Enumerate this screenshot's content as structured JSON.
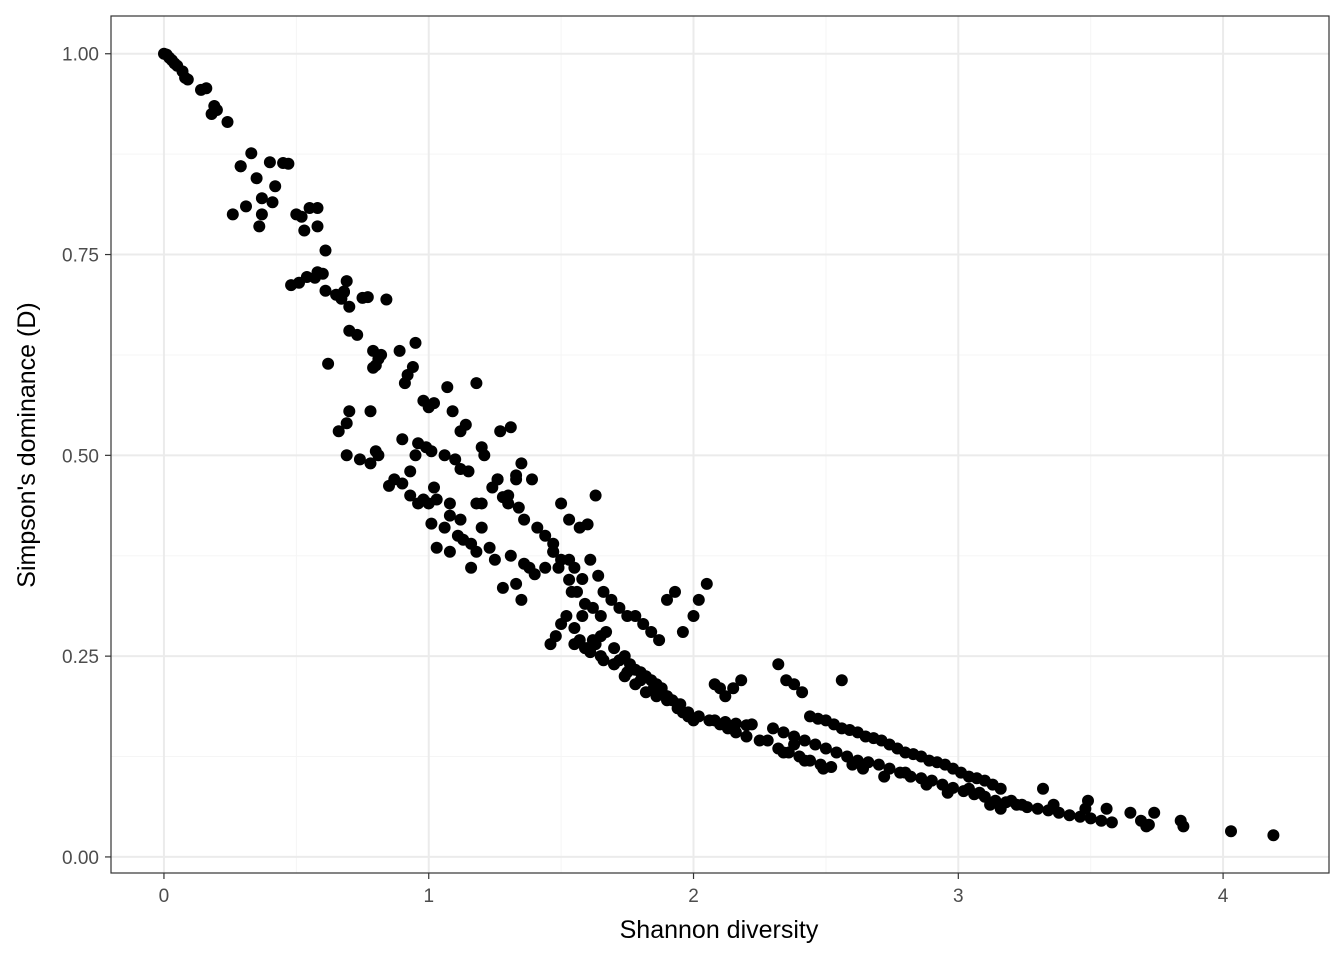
{
  "chart_data": {
    "type": "scatter",
    "title": "",
    "xlabel": "Shannon diversity",
    "ylabel": "Simpson's dominance (D)",
    "xlim": [
      -0.2,
      4.4
    ],
    "ylim": [
      -0.02,
      1.047
    ],
    "x_ticks": [
      0,
      1,
      2,
      3,
      4
    ],
    "x_tick_labels": [
      "0",
      "1",
      "2",
      "3",
      "4"
    ],
    "y_ticks": [
      0,
      0.25,
      0.5,
      0.75,
      1.0
    ],
    "y_tick_labels": [
      "0.00",
      "0.25",
      "0.50",
      "0.75",
      "1.00"
    ],
    "grid": true,
    "theme": "bw",
    "point_color": "#000000",
    "panel_border_color": "#333333",
    "grid_major_color": "#ebebeb",
    "grid_minor_color": "#f5f5f5",
    "series": [
      {
        "x": [
          0.0,
          0.01,
          0.02,
          0.03,
          0.04,
          0.05,
          0.07,
          0.08,
          0.09,
          0.14,
          0.16,
          0.18,
          0.19,
          0.2,
          0.24,
          0.29,
          0.33,
          0.35,
          0.37,
          0.4,
          0.41,
          0.42,
          0.45,
          0.47,
          0.52,
          0.53,
          0.55,
          0.58,
          0.29,
          0.26,
          0.31,
          0.36,
          0.37,
          0.48,
          0.51,
          0.54,
          0.58,
          0.61,
          0.58,
          0.5,
          0.57,
          0.6,
          0.61,
          0.65,
          0.68,
          0.69,
          0.67,
          0.68,
          0.7,
          0.75,
          0.77,
          0.81,
          0.84,
          0.79,
          0.82,
          0.62,
          0.7,
          0.73,
          0.79,
          0.8,
          0.89,
          0.92,
          0.95,
          0.91,
          0.94,
          1.02,
          0.98,
          1.0,
          1.07,
          1.09,
          1.14,
          1.18,
          1.12,
          1.2,
          1.27,
          1.31,
          1.35,
          1.39,
          0.66,
          0.69,
          0.7,
          0.78,
          0.8,
          0.81,
          0.9,
          0.93,
          0.95,
          0.96,
          0.99,
          1.01,
          1.02,
          1.06,
          1.08,
          1.1,
          1.12,
          1.15,
          1.18,
          1.21,
          1.24,
          1.26,
          1.28,
          1.3,
          1.33,
          1.34,
          1.36,
          0.69,
          0.74,
          0.78,
          0.85,
          0.87,
          0.9,
          0.93,
          0.96,
          0.98,
          1.0,
          1.03,
          1.06,
          1.08,
          1.11,
          1.13,
          1.16,
          1.18,
          1.2,
          1.23,
          1.25,
          1.28,
          1.31,
          1.33,
          1.35,
          1.38,
          1.41,
          1.44,
          1.47,
          1.5,
          1.53,
          1.56,
          1.59,
          1.62,
          1.65,
          1.53,
          1.57,
          1.6,
          1.63,
          1.01,
          1.03,
          1.08,
          1.12,
          1.16,
          1.2,
          1.26,
          1.3,
          1.33,
          1.36,
          1.4,
          1.44,
          1.47,
          1.5,
          1.53,
          1.55,
          1.58,
          1.61,
          1.64,
          1.66,
          1.69,
          1.72,
          1.75,
          1.78,
          1.81,
          1.84,
          1.87,
          1.9,
          1.93,
          1.96,
          2.0,
          2.02,
          2.05,
          1.46,
          1.48,
          1.5,
          1.52,
          1.55,
          1.57,
          1.59,
          1.61,
          1.63,
          1.65,
          1.67,
          1.7,
          1.72,
          1.74,
          1.76,
          1.78,
          1.8,
          1.82,
          1.84,
          1.86,
          1.88,
          1.9,
          1.92,
          1.94,
          1.96,
          1.98,
          2.0,
          1.47,
          1.49,
          1.54,
          1.58,
          1.62,
          1.66,
          1.7,
          1.74,
          1.78,
          1.82,
          1.86,
          1.9,
          1.94,
          1.98,
          2.02,
          2.06,
          2.1,
          2.13,
          2.16,
          2.2,
          2.25,
          2.28,
          2.32,
          2.36,
          2.4,
          2.44,
          2.48,
          2.52,
          1.55,
          1.6,
          1.65,
          1.7,
          1.75,
          1.8,
          1.85,
          1.9,
          1.95,
          2.08,
          2.1,
          2.12,
          2.15,
          2.18,
          2.22,
          2.32,
          2.35,
          2.38,
          2.41,
          2.44,
          2.47,
          2.5,
          2.53,
          2.56,
          2.59,
          2.62,
          2.65,
          2.68,
          2.71,
          2.74,
          2.77,
          2.8,
          2.83,
          2.86,
          2.89,
          2.92,
          2.95,
          2.98,
          3.01,
          3.04,
          3.07,
          3.1,
          3.13,
          3.16,
          2.08,
          2.12,
          2.16,
          2.2,
          2.3,
          2.34,
          2.38,
          2.42,
          2.46,
          2.5,
          2.54,
          2.58,
          2.62,
          2.66,
          2.7,
          2.74,
          2.78,
          2.82,
          2.86,
          2.9,
          2.94,
          2.98,
          3.02,
          3.06,
          3.1,
          3.14,
          3.18,
          3.22,
          3.26,
          3.3,
          3.34,
          3.38,
          3.42,
          3.46,
          3.5,
          3.54,
          3.58,
          2.34,
          2.38,
          2.42,
          2.49,
          2.56,
          2.6,
          2.64,
          2.72,
          2.8,
          2.88,
          2.96,
          3.04,
          3.08,
          3.12,
          3.16,
          3.2,
          3.24,
          3.32,
          3.36,
          3.48,
          3.56,
          3.65,
          3.69,
          3.72,
          3.74,
          3.84,
          3.85,
          3.71,
          3.49,
          4.03,
          4.19
        ],
        "y": [
          1.0,
          0.999,
          0.995,
          0.992,
          0.988,
          0.985,
          0.978,
          0.97,
          0.968,
          0.955,
          0.957,
          0.925,
          0.935,
          0.93,
          0.915,
          0.86,
          0.876,
          0.845,
          0.82,
          0.865,
          0.815,
          0.835,
          0.864,
          0.863,
          0.797,
          0.78,
          0.808,
          0.808,
          0.86,
          0.8,
          0.81,
          0.785,
          0.8,
          0.712,
          0.715,
          0.722,
          0.728,
          0.755,
          0.785,
          0.8,
          0.721,
          0.726,
          0.705,
          0.7,
          0.704,
          0.717,
          0.695,
          0.703,
          0.685,
          0.696,
          0.697,
          0.62,
          0.694,
          0.609,
          0.625,
          0.614,
          0.655,
          0.65,
          0.63,
          0.612,
          0.63,
          0.6,
          0.64,
          0.59,
          0.61,
          0.565,
          0.568,
          0.56,
          0.585,
          0.555,
          0.538,
          0.59,
          0.53,
          0.51,
          0.53,
          0.535,
          0.49,
          0.47,
          0.53,
          0.54,
          0.555,
          0.555,
          0.505,
          0.5,
          0.52,
          0.48,
          0.5,
          0.515,
          0.51,
          0.505,
          0.46,
          0.5,
          0.44,
          0.495,
          0.483,
          0.48,
          0.44,
          0.5,
          0.46,
          0.47,
          0.448,
          0.45,
          0.47,
          0.435,
          0.42,
          0.5,
          0.495,
          0.49,
          0.462,
          0.47,
          0.465,
          0.45,
          0.44,
          0.445,
          0.44,
          0.385,
          0.41,
          0.425,
          0.4,
          0.395,
          0.39,
          0.38,
          0.41,
          0.385,
          0.37,
          0.335,
          0.375,
          0.34,
          0.32,
          0.36,
          0.41,
          0.4,
          0.38,
          0.37,
          0.345,
          0.33,
          0.315,
          0.31,
          0.3,
          0.42,
          0.41,
          0.414,
          0.45,
          0.415,
          0.445,
          0.38,
          0.42,
          0.36,
          0.44,
          0.47,
          0.44,
          0.475,
          0.365,
          0.352,
          0.36,
          0.38,
          0.44,
          0.37,
          0.36,
          0.346,
          0.37,
          0.35,
          0.33,
          0.32,
          0.31,
          0.3,
          0.3,
          0.29,
          0.28,
          0.27,
          0.32,
          0.33,
          0.28,
          0.3,
          0.32,
          0.34,
          0.265,
          0.275,
          0.29,
          0.3,
          0.285,
          0.27,
          0.26,
          0.255,
          0.265,
          0.275,
          0.28,
          0.26,
          0.245,
          0.25,
          0.24,
          0.233,
          0.23,
          0.225,
          0.22,
          0.215,
          0.21,
          0.2,
          0.195,
          0.19,
          0.18,
          0.175,
          0.17,
          0.39,
          0.36,
          0.33,
          0.3,
          0.27,
          0.245,
          0.24,
          0.225,
          0.215,
          0.205,
          0.2,
          0.195,
          0.185,
          0.18,
          0.175,
          0.17,
          0.165,
          0.16,
          0.155,
          0.15,
          0.145,
          0.145,
          0.135,
          0.13,
          0.125,
          0.12,
          0.115,
          0.112,
          0.265,
          0.26,
          0.25,
          0.24,
          0.23,
          0.22,
          0.21,
          0.2,
          0.19,
          0.215,
          0.21,
          0.2,
          0.21,
          0.22,
          0.165,
          0.24,
          0.22,
          0.215,
          0.205,
          0.175,
          0.172,
          0.17,
          0.165,
          0.16,
          0.158,
          0.155,
          0.15,
          0.148,
          0.145,
          0.14,
          0.135,
          0.13,
          0.128,
          0.125,
          0.12,
          0.118,
          0.115,
          0.11,
          0.105,
          0.1,
          0.098,
          0.095,
          0.09,
          0.085,
          0.17,
          0.168,
          0.166,
          0.164,
          0.16,
          0.155,
          0.15,
          0.145,
          0.14,
          0.135,
          0.13,
          0.125,
          0.12,
          0.118,
          0.115,
          0.11,
          0.105,
          0.1,
          0.098,
          0.095,
          0.09,
          0.086,
          0.082,
          0.078,
          0.075,
          0.07,
          0.068,
          0.065,
          0.062,
          0.06,
          0.058,
          0.055,
          0.052,
          0.05,
          0.048,
          0.045,
          0.043,
          0.13,
          0.14,
          0.12,
          0.11,
          0.22,
          0.115,
          0.11,
          0.1,
          0.105,
          0.09,
          0.08,
          0.085,
          0.08,
          0.065,
          0.06,
          0.07,
          0.065,
          0.085,
          0.065,
          0.06,
          0.06,
          0.055,
          0.045,
          0.04,
          0.055,
          0.045,
          0.038,
          0.038,
          0.07,
          0.032,
          0.027
        ]
      }
    ]
  }
}
